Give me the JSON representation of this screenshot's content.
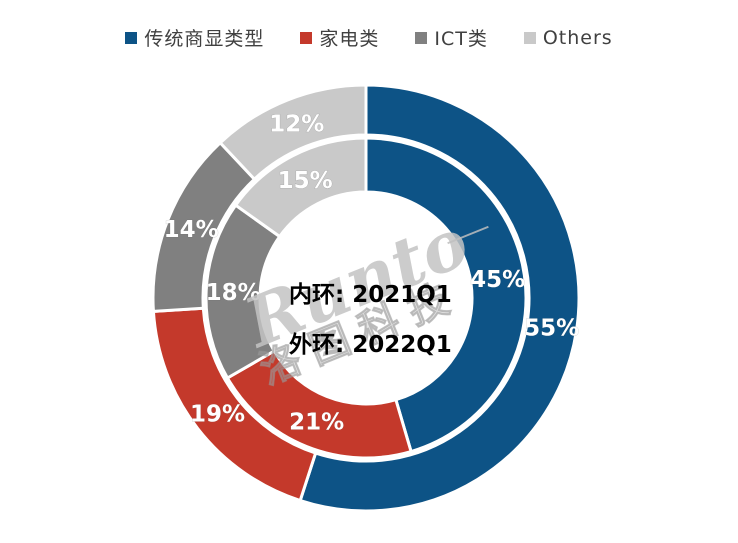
{
  "legend": {
    "items": [
      {
        "label": "传统商显类型",
        "color": "#0D5386"
      },
      {
        "label": "家电类",
        "color": "#C4392B"
      },
      {
        "label": "ICT类",
        "color": "#808080"
      },
      {
        "label": "Others",
        "color": "#C9C9C9"
      }
    ]
  },
  "chart_data": {
    "type": "pie",
    "variant": "nested-donut",
    "categories": [
      "传统商显类型",
      "家电类",
      "ICT类",
      "Others"
    ],
    "colors": [
      "#0D5386",
      "#C4392B",
      "#808080",
      "#C9C9C9"
    ],
    "series": [
      {
        "name": "2021Q1",
        "ring": "inner",
        "values": [
          45,
          21,
          18,
          15
        ]
      },
      {
        "name": "2022Q1",
        "ring": "outer",
        "values": [
          55,
          19,
          14,
          12
        ]
      }
    ],
    "label_format": "percent",
    "legend_position": "top",
    "start_angle_deg": 0,
    "direction": "clockwise",
    "slice_border_color": "#FFFFFF",
    "label_color": "#FFFFFF"
  },
  "center_caption": {
    "line1": "内环: 2021Q1",
    "line2": "外环: 2022Q1"
  },
  "watermark": {
    "latin": "Runto",
    "cjk": "洛图科技"
  },
  "colors": {
    "background": "#FFFFFF",
    "legend_text": "#404040",
    "center_text": "#000000"
  }
}
